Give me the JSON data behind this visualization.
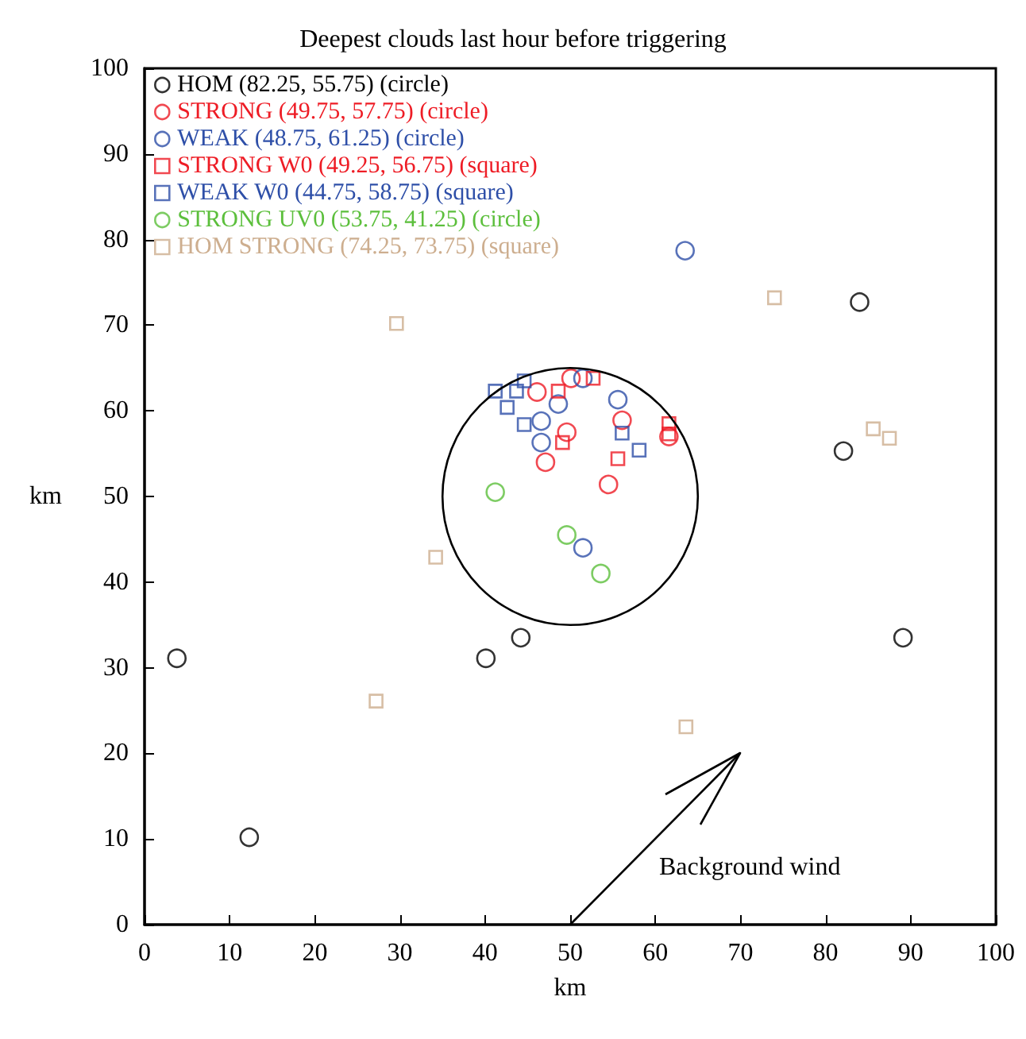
{
  "chart_data": {
    "type": "scatter",
    "title": "Deepest clouds last hour before triggering",
    "xlabel": "km",
    "ylabel": "km",
    "xlim": [
      0,
      100
    ],
    "ylim": [
      0,
      100
    ],
    "xticks": [
      0,
      10,
      20,
      30,
      40,
      50,
      60,
      70,
      80,
      90,
      100
    ],
    "yticks": [
      0,
      10,
      20,
      30,
      40,
      50,
      60,
      70,
      80,
      90,
      100
    ],
    "grid": false,
    "legend": "top left",
    "series": [
      {
        "name": "HOM (82.25, 55.75) (circle)",
        "color": "#000000",
        "marker": "circle",
        "x": [
          3.8,
          12.3,
          40.1,
          44.2,
          89.1,
          84.0,
          82.1
        ],
        "values": [
          31.1,
          10.2,
          31.1,
          33.5,
          33.5,
          72.7,
          55.3
        ]
      },
      {
        "name": "STRONG (49.75, 57.75) (circle)",
        "color": "#ee1c25",
        "marker": "circle",
        "x": [
          46.1,
          50.1,
          56.1,
          49.6,
          47.1,
          54.5,
          61.6
        ],
        "values": [
          62.2,
          63.8,
          58.9,
          57.5,
          54.0,
          51.4,
          57.0
        ]
      },
      {
        "name": "WEAK (48.75, 61.25) (circle)",
        "color": "#2e4fa8",
        "marker": "circle",
        "x": [
          51.5,
          48.6,
          55.6,
          46.6,
          46.6,
          51.5,
          63.5
        ],
        "values": [
          63.8,
          60.8,
          61.3,
          58.8,
          56.3,
          44.0,
          78.7
        ]
      },
      {
        "name": "STRONG W0 (49.25, 56.75) (square)",
        "color": "#ee1c25",
        "marker": "square",
        "x": [
          48.6,
          52.7,
          49.1,
          55.6,
          61.6,
          61.6
        ],
        "values": [
          62.3,
          63.8,
          56.3,
          54.4,
          58.5,
          57.3
        ]
      },
      {
        "name": "WEAK W0 (44.75, 58.75) (square)",
        "color": "#2e4fa8",
        "marker": "square",
        "x": [
          41.2,
          43.7,
          44.6,
          42.6,
          44.6,
          56.1,
          58.1
        ],
        "values": [
          62.3,
          62.3,
          63.5,
          60.4,
          58.4,
          57.4,
          55.4
        ]
      },
      {
        "name": "STRONG UV0 (53.75, 41.25) (circle)",
        "color": "#5cbf3c",
        "marker": "circle",
        "x": [
          41.2,
          49.6,
          53.6
        ],
        "values": [
          50.5,
          45.5,
          41.0
        ]
      },
      {
        "name": "HOM STRONG (74.25, 73.75) (square)",
        "color": "#cdae8f",
        "marker": "square",
        "x": [
          29.6,
          74.0,
          85.6,
          87.5,
          34.2,
          27.2,
          63.6
        ],
        "values": [
          70.2,
          73.2,
          57.9,
          56.8,
          42.9,
          26.1,
          23.1
        ]
      }
    ],
    "annotations": [
      "Background wind"
    ]
  }
}
